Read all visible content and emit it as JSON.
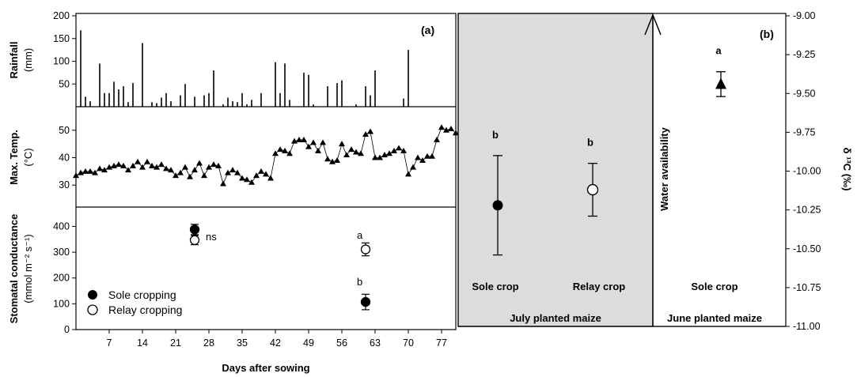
{
  "chart_data": [
    {
      "panel": "(a)",
      "type": "bar",
      "ylabel": "Rainfall",
      "yunit": "(mm)",
      "ylim": [
        0,
        200
      ],
      "yticks": [
        "200",
        "150",
        "100",
        "50"
      ],
      "x": [
        1,
        2,
        3,
        5,
        6,
        7,
        8,
        9,
        10,
        11,
        12,
        14,
        16,
        17,
        18,
        19,
        20,
        22,
        23,
        25,
        27,
        28,
        29,
        31,
        32,
        33,
        34,
        35,
        36,
        37,
        39,
        42,
        43,
        44,
        45,
        48,
        49,
        50,
        53,
        55,
        56,
        59,
        61,
        62,
        63,
        69,
        70
      ],
      "values": [
        168,
        22,
        12,
        95,
        30,
        30,
        55,
        38,
        45,
        10,
        52,
        140,
        10,
        8,
        20,
        30,
        12,
        25,
        50,
        22,
        25,
        30,
        80,
        5,
        20,
        12,
        10,
        30,
        5,
        15,
        30,
        98,
        30,
        95,
        15,
        75,
        70,
        5,
        45,
        52,
        58,
        5,
        45,
        25,
        80,
        18,
        125
      ]
    },
    {
      "type": "line",
      "ylabel": "Max. Temp.",
      "yunit": "(°C)",
      "ylim": [
        22,
        58
      ],
      "yticks": [
        "50",
        "40",
        "30"
      ],
      "x": [
        0,
        1,
        2,
        3,
        4,
        5,
        6,
        7,
        8,
        9,
        10,
        11,
        12,
        13,
        14,
        15,
        16,
        17,
        18,
        19,
        20,
        21,
        22,
        23,
        24,
        25,
        26,
        27,
        28,
        29,
        30,
        31,
        32,
        33,
        34,
        35,
        36,
        37,
        38,
        39,
        40,
        41,
        42,
        43,
        44,
        45,
        46,
        47,
        48,
        49,
        50,
        51,
        52,
        53,
        54,
        55,
        56,
        57,
        58,
        59,
        60,
        61,
        62,
        63,
        64,
        65,
        66,
        67,
        68,
        69,
        70,
        71,
        72,
        73,
        74,
        75,
        76,
        77,
        78,
        79,
        80
      ],
      "values": [
        33.5,
        34.5,
        35,
        35,
        34.5,
        36,
        35.5,
        36.5,
        37,
        37.5,
        37,
        35.5,
        37,
        38.5,
        36.5,
        38.5,
        37,
        36.5,
        37.5,
        36,
        35.5,
        33.5,
        34.5,
        36.5,
        33,
        35.5,
        38,
        33.5,
        36.5,
        37.5,
        37,
        30.5,
        34.5,
        35.5,
        34.5,
        32.5,
        32,
        31,
        33.5,
        35,
        34,
        32.5,
        41.5,
        43,
        42.5,
        41.5,
        46,
        46.5,
        46.5,
        44,
        45.5,
        42.5,
        45.5,
        39.5,
        38.5,
        39,
        45,
        41,
        43,
        42,
        41.5,
        48.5,
        49.5,
        40,
        40,
        41,
        41.5,
        42.5,
        43.5,
        42.5,
        34,
        36.5,
        40,
        39,
        40.5,
        40.5,
        46.5,
        51,
        50,
        50.5,
        49
      ]
    },
    {
      "type": "scatter",
      "xlabel": "Days after sowing",
      "ylabel": "Stomatal conductance",
      "yunit": "(mmol m⁻² s⁻¹)",
      "ylim": [
        0,
        475
      ],
      "yticks": [
        "400",
        "300",
        "200",
        "100",
        "0"
      ],
      "xticks": [
        "7",
        "14",
        "21",
        "28",
        "35",
        "42",
        "49",
        "56",
        "63",
        "70",
        "77"
      ],
      "legend_position": "bottom-left",
      "series": [
        {
          "name": "Sole cropping",
          "x": [
            25,
            61
          ],
          "values": [
            388,
            107
          ],
          "error": [
            20,
            30
          ]
        },
        {
          "name": "Relay cropping",
          "x": [
            25,
            61
          ],
          "values": [
            347,
            311
          ],
          "error": [
            18,
            25
          ]
        }
      ],
      "annotations": [
        "ns",
        "a",
        "b"
      ]
    },
    {
      "panel": "(b)",
      "type": "scatter",
      "ylabel": "δ ¹³C (‰)",
      "ylim": [
        -11.0,
        -9.0
      ],
      "yticks": [
        "-9.00",
        "-9.25",
        "-9.50",
        "-9.75",
        "-10.00",
        "-10.25",
        "-10.50",
        "-10.75",
        "-11.00"
      ],
      "categories": [
        "Sole crop",
        "Relay crop",
        "Sole crop"
      ],
      "groups": [
        "July planted maize",
        "June planted maize"
      ],
      "series": [
        {
          "label": "Sole crop",
          "group": "July planted maize",
          "value": -10.22,
          "error": 0.32,
          "letter": "b"
        },
        {
          "label": "Relay crop",
          "group": "July planted maize",
          "value": -10.12,
          "error": 0.17,
          "letter": "b"
        },
        {
          "label": "Sole crop",
          "group": "June planted maize",
          "value": -9.44,
          "error": 0.08,
          "letter": "a"
        }
      ],
      "annotation_arrow": "Water availability"
    }
  ]
}
